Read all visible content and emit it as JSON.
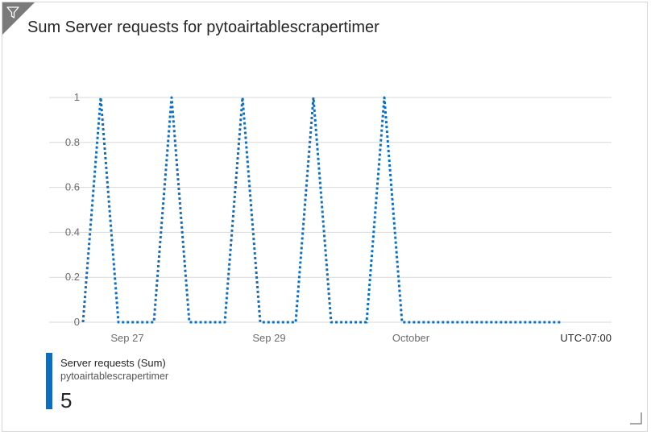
{
  "tile": {
    "title": "Sum Server requests for pytoairtablescrapertimer"
  },
  "icons": {
    "corner": "filter-icon",
    "resize": "resize-handle-icon"
  },
  "colors": {
    "series": "#0a6fc2",
    "grid": "#d9d9d9",
    "corner": "#7a7a7a"
  },
  "chart_data": {
    "type": "line",
    "title": "Sum Server requests for pytoairtablescrapertimer",
    "xlabel": "",
    "ylabel": "",
    "timezone_label": "UTC-07:00",
    "x_tick_labels": [
      "Sep 27",
      "Sep 29",
      "October"
    ],
    "y_tick_labels": [
      "0",
      "0.2",
      "0.4",
      "0.6",
      "0.8",
      "1"
    ],
    "ylim": [
      0,
      1
    ],
    "grid": true,
    "line_style": "dotted",
    "series": [
      {
        "name": "Server requests (Sum)",
        "resource": "pytoairtablescrapertimer",
        "x": [
          "Sep 26 12:00",
          "Sep 26 18:00",
          "Sep 27 00:00",
          "Sep 27 06:00",
          "Sep 27 12:00",
          "Sep 27 18:00",
          "Sep 28 00:00",
          "Sep 28 06:00",
          "Sep 28 12:00",
          "Sep 28 18:00",
          "Sep 29 00:00",
          "Sep 29 06:00",
          "Sep 29 12:00",
          "Sep 29 18:00",
          "Sep 30 00:00",
          "Sep 30 06:00",
          "Sep 30 12:00",
          "Sep 30 18:00",
          "Oct 1 00:00",
          "Oct 1 06:00",
          "Oct 1 12:00",
          "Oct 1 18:00",
          "Oct 2 00:00",
          "Oct 2 06:00",
          "Oct 2 12:00",
          "Oct 2 18:00",
          "Oct 3 00:00",
          "Oct 3 06:00"
        ],
        "values": [
          0,
          1,
          0,
          0,
          0,
          1,
          0,
          0,
          0,
          1,
          0,
          0,
          0,
          1,
          0,
          0,
          0,
          1,
          0,
          0,
          0,
          0,
          0,
          0,
          0,
          0,
          0,
          0
        ]
      }
    ],
    "legend_total": "5",
    "legend_placement": "bottom-left"
  }
}
